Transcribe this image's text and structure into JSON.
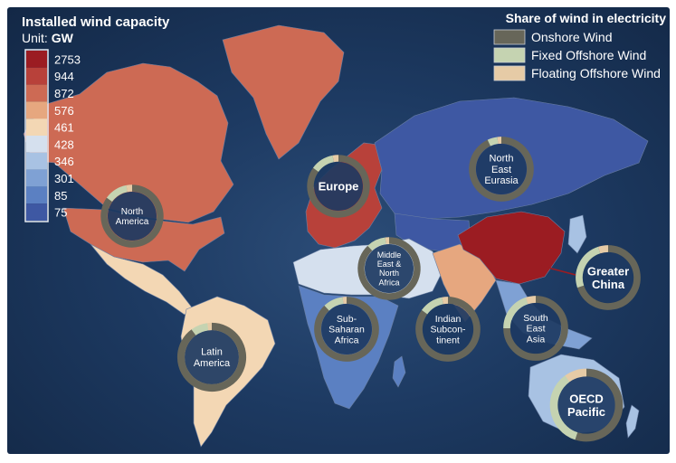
{
  "title": "Installed wind capacity",
  "unit_label": "Unit:",
  "unit": "GW",
  "scale": [
    {
      "label": "2753",
      "color": "#9b1c22"
    },
    {
      "label": "944",
      "color": "#b8413a"
    },
    {
      "label": "872",
      "color": "#cd6a54"
    },
    {
      "label": "576",
      "color": "#e6a77f"
    },
    {
      "label": "461",
      "color": "#f3d7b4"
    },
    {
      "label": "428",
      "color": "#d5e0ee"
    },
    {
      "label": "346",
      "color": "#a8c2e3"
    },
    {
      "label": "301",
      "color": "#7fa1d4"
    },
    {
      "label": "85",
      "color": "#5b80c2"
    },
    {
      "label": "75",
      "color": "#3e58a3"
    }
  ],
  "legend": {
    "title": "Share of wind in electricity",
    "items": [
      {
        "label": "Onshore Wind",
        "color": "#676659"
      },
      {
        "label": "Fixed Offshore Wind",
        "color": "#c5d3b1"
      },
      {
        "label": "Floating Offshore Wind",
        "color": "#e6cba6"
      }
    ]
  },
  "regions": [
    {
      "id": "north-america",
      "label": [
        "North",
        "America"
      ],
      "capacity_color": "#cd6a54",
      "onshore": 0.85,
      "fixed": 0.12,
      "floating": 0.03
    },
    {
      "id": "europe",
      "label": [
        "Europe"
      ],
      "capacity_color": "#b8413a",
      "onshore": 0.85,
      "fixed": 0.12,
      "floating": 0.03
    },
    {
      "id": "north-east-eurasia",
      "label": [
        "North",
        "East",
        "Eurasia"
      ],
      "capacity_color": "#3e58a3",
      "onshore": 0.93,
      "fixed": 0.05,
      "floating": 0.02
    },
    {
      "id": "middle-east-north-africa",
      "label": [
        "Middle",
        "East &",
        "North",
        "Africa"
      ],
      "capacity_color": "#d5e0ee",
      "onshore": 0.88,
      "fixed": 0.1,
      "floating": 0.02
    },
    {
      "id": "greater-china",
      "label": [
        "Greater",
        "China"
      ],
      "capacity_color": "#9b1c22",
      "onshore": 0.7,
      "fixed": 0.25,
      "floating": 0.05
    },
    {
      "id": "sub-saharan-africa",
      "label": [
        "Sub-",
        "Saharan",
        "Africa"
      ],
      "capacity_color": "#5b80c2",
      "onshore": 0.88,
      "fixed": 0.1,
      "floating": 0.02
    },
    {
      "id": "indian-subcontinent",
      "label": [
        "Indian",
        "Subcon-",
        "tinent"
      ],
      "capacity_color": "#e6a77f",
      "onshore": 0.85,
      "fixed": 0.12,
      "floating": 0.03
    },
    {
      "id": "south-east-asia",
      "label": [
        "South",
        "East",
        "Asia"
      ],
      "capacity_color": "#7fa1d4",
      "onshore": 0.75,
      "fixed": 0.2,
      "floating": 0.05
    },
    {
      "id": "latin-america",
      "label": [
        "Latin",
        "America"
      ],
      "capacity_color": "#f3d7b4",
      "onshore": 0.9,
      "fixed": 0.08,
      "floating": 0.02
    },
    {
      "id": "oecd-pacific",
      "label": [
        "OECD",
        "Pacific"
      ],
      "capacity_color": "#a8c2e3",
      "onshore": 0.55,
      "fixed": 0.35,
      "floating": 0.1
    }
  ]
}
